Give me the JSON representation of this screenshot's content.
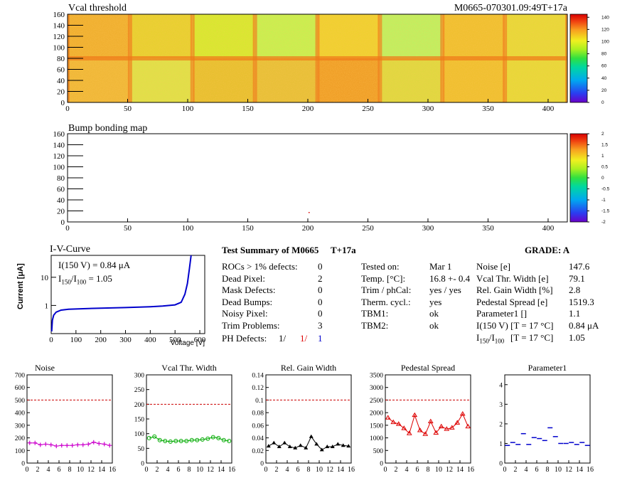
{
  "header": {
    "map_title": "Vcal threshold",
    "module_id": "M0665-070301.09:49T+17a",
    "bump_title": "Bump bonding map"
  },
  "maps": {
    "x_ticks": [
      "0",
      "50",
      "100",
      "150",
      "200",
      "250",
      "300",
      "350",
      "400"
    ],
    "y_ticks": [
      "0",
      "20",
      "40",
      "60",
      "80",
      "100",
      "120",
      "140",
      "160"
    ],
    "x_range": [
      0,
      416
    ],
    "y_range": [
      0,
      160
    ],
    "vcal_colorbar": [
      "0",
      "20",
      "40",
      "60",
      "80",
      "100",
      "120",
      "140"
    ],
    "bump_colorbar": [
      "-2",
      "-1.5",
      "-1",
      "-0.5",
      "0",
      "0.5",
      "1",
      "1.5",
      "2"
    ]
  },
  "iv": {
    "title": "I-V-Curve",
    "ylabel": "Current [μA]",
    "xlabel": "Voltage [V]",
    "current_label_main": "I(150 V) = 0.84 μA",
    "ratio_label_I": "I",
    "ratio_label_sub1": "150",
    "ratio_label_slash": "/I",
    "ratio_label_sub2": "100",
    "ratio_label_value": "=  1.05",
    "x_ticks": [
      "0",
      "100",
      "200",
      "300",
      "400",
      "500",
      "600"
    ],
    "y_ticks": [
      "1",
      "10"
    ]
  },
  "summary": {
    "title": "Test Summary of M0665",
    "temp_tag": "T+17a",
    "grade": "GRADE:  A",
    "left_rows": [
      {
        "label": "ROCs > 1% defects:",
        "value": "0"
      },
      {
        "label": "Dead Pixel:",
        "value": "2"
      },
      {
        "label": "Mask Defects:",
        "value": "0"
      },
      {
        "label": "Dead Bumps:",
        "value": "0"
      },
      {
        "label": "Noisy Pixel:",
        "value": "0"
      },
      {
        "label": "Trim Problems:",
        "value": "3"
      }
    ],
    "ph_defects_label": "PH Defects:",
    "ph_v1": "1/",
    "ph_v2": "1/",
    "ph_v3": "1",
    "ph_colors": [
      "#000000",
      "#dd0000",
      "#0000cc"
    ],
    "mid_rows": [
      {
        "label": "Tested on:",
        "value": "Mar 1"
      },
      {
        "label": "Temp. [°C]:",
        "value": "16.8 +- 0.4"
      },
      {
        "label": "Trim / phCal:",
        "value": "yes / yes"
      },
      {
        "label": "Therm. cycl.:",
        "value": "yes"
      },
      {
        "label": "TBM1:",
        "value": "ok"
      },
      {
        "label": "TBM2:",
        "value": "ok"
      }
    ],
    "right_rows": [
      {
        "label": "Noise [e]",
        "value": "147.6"
      },
      {
        "label": "Vcal Thr. Width [e]",
        "value": "79.1"
      },
      {
        "label": "Rel. Gain Width [%]",
        "value": "2.8"
      },
      {
        "label": "Pedestal Spread [e]",
        "value": "1519.3"
      },
      {
        "label": "Parameter1 []",
        "value": "1.1"
      },
      {
        "label": "I(150 V) [T = 17 °C]",
        "value": "0.84 μA"
      }
    ],
    "ratio_row": {
      "label_I": "I",
      "sub1": "150",
      "slash": "/I",
      "sub2": "100",
      "cond": "[T = 17 °C]",
      "value": "1.05"
    }
  },
  "chart_data": [
    {
      "type": "line",
      "title": "Noise",
      "x": [
        0,
        1,
        2,
        3,
        4,
        5,
        6,
        7,
        8,
        9,
        10,
        11,
        12,
        13,
        14,
        15
      ],
      "values": [
        160,
        160,
        145,
        150,
        145,
        135,
        140,
        140,
        140,
        145,
        145,
        150,
        165,
        155,
        150,
        140
      ],
      "limit": 500,
      "ylim": [
        0,
        700
      ],
      "y_ticks": [
        0,
        100,
        200,
        300,
        400,
        500,
        600,
        700
      ],
      "xlim": [
        0,
        16
      ],
      "color": "#cc00cc",
      "marker": "plus"
    },
    {
      "type": "line",
      "title": "Vcal Thr. Width",
      "x": [
        0,
        1,
        2,
        3,
        4,
        5,
        6,
        7,
        8,
        9,
        10,
        11,
        12,
        13,
        14,
        15
      ],
      "values": [
        85,
        90,
        78,
        75,
        73,
        75,
        75,
        75,
        78,
        78,
        80,
        83,
        88,
        85,
        78,
        75
      ],
      "limit": 200,
      "ylim": [
        0,
        300
      ],
      "y_ticks": [
        0,
        50,
        100,
        150,
        200,
        250,
        300
      ],
      "xlim": [
        0,
        16
      ],
      "color": "#00aa00",
      "marker": "circle"
    },
    {
      "type": "line",
      "title": "Rel. Gain Width",
      "x": [
        0,
        1,
        2,
        3,
        4,
        5,
        6,
        7,
        8,
        9,
        10,
        11,
        12,
        13,
        14,
        15
      ],
      "values": [
        0.027,
        0.032,
        0.026,
        0.032,
        0.026,
        0.024,
        0.028,
        0.024,
        0.042,
        0.03,
        0.021,
        0.026,
        0.026,
        0.03,
        0.028,
        0.027
      ],
      "limit": 0.1,
      "ylim": [
        0,
        0.14
      ],
      "y_ticks": [
        0,
        0.02,
        0.04,
        0.06,
        0.08,
        0.1,
        0.12,
        0.14
      ],
      "xlim": [
        0,
        16
      ],
      "color": "#000000",
      "marker": "triangle"
    },
    {
      "type": "line",
      "title": "Pedestal Spread",
      "x": [
        0,
        1,
        2,
        3,
        4,
        5,
        6,
        7,
        8,
        9,
        10,
        11,
        12,
        13,
        14,
        15
      ],
      "values": [
        1800,
        1620,
        1550,
        1380,
        1180,
        1900,
        1300,
        1150,
        1650,
        1200,
        1450,
        1350,
        1400,
        1600,
        1950,
        1450
      ],
      "limit": 2500,
      "ylim": [
        0,
        3500
      ],
      "y_ticks": [
        0,
        500,
        1000,
        1500,
        2000,
        2500,
        3000,
        3500
      ],
      "xlim": [
        0,
        16
      ],
      "color": "#dd0000",
      "marker": "triangle-open"
    },
    {
      "type": "scatter",
      "title": "Parameter1",
      "x": [
        0,
        1,
        2,
        3,
        4,
        5,
        6,
        7,
        8,
        9,
        10,
        11,
        12,
        13,
        14,
        15
      ],
      "values": [
        0.9,
        1.05,
        0.95,
        1.5,
        0.95,
        1.3,
        1.25,
        1.15,
        1.8,
        1.35,
        1.0,
        1.0,
        1.05,
        0.95,
        1.05,
        0.9
      ],
      "ylim": [
        0,
        4.5
      ],
      "y_ticks": [
        0,
        1,
        2,
        3,
        4
      ],
      "xlim": [
        0,
        16
      ],
      "color": "#0000cc",
      "marker": "hbar"
    }
  ],
  "x_ticks_small": [
    "0",
    "2",
    "4",
    "6",
    "8",
    "10",
    "12",
    "14",
    "16"
  ]
}
